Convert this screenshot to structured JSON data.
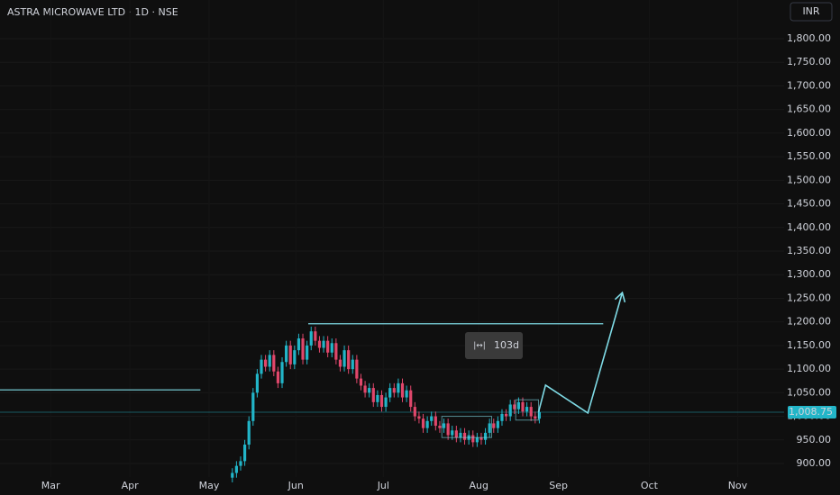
{
  "chart_data": {
    "type": "candlestick",
    "title": "ASTRA MICROWAVE LTD · 1D · NSE",
    "currency": "INR",
    "up_color": "#22b5c8",
    "down_color": "#e0476b",
    "drawing_color": "#7fdbe6",
    "x": [
      56,
      57,
      58,
      59,
      60,
      61,
      62,
      63,
      64,
      65,
      66,
      67,
      68,
      69,
      70,
      71,
      72,
      73,
      74,
      75,
      76,
      77,
      78,
      79,
      80,
      81,
      82,
      83,
      84,
      85,
      86,
      87,
      88,
      89,
      90,
      91,
      92,
      93,
      94,
      95,
      96,
      97,
      98,
      99,
      100,
      101,
      102,
      103,
      104,
      105,
      106,
      107,
      108,
      109,
      110,
      111,
      112,
      113,
      114,
      115,
      116,
      117,
      118,
      119,
      120,
      121,
      122,
      123,
      124,
      125,
      126,
      127,
      128,
      129,
      130
    ],
    "open": [
      870,
      880,
      895,
      905,
      940,
      990,
      1050,
      1090,
      1120,
      1105,
      1130,
      1095,
      1070,
      1115,
      1150,
      1110,
      1140,
      1165,
      1120,
      1150,
      1180,
      1160,
      1145,
      1160,
      1135,
      1155,
      1120,
      1105,
      1140,
      1100,
      1120,
      1080,
      1065,
      1050,
      1060,
      1030,
      1045,
      1020,
      1040,
      1060,
      1050,
      1070,
      1040,
      1055,
      1020,
      1000,
      995,
      975,
      990,
      1000,
      980,
      975,
      985,
      960,
      970,
      955,
      965,
      950,
      960,
      945,
      955,
      950,
      965,
      985,
      975,
      990,
      1005,
      1000,
      1025,
      1015,
      1030,
      1010,
      1020,
      1000,
      995
    ],
    "high": [
      890,
      905,
      915,
      950,
      1000,
      1060,
      1100,
      1130,
      1130,
      1140,
      1140,
      1105,
      1125,
      1160,
      1160,
      1150,
      1175,
      1175,
      1160,
      1190,
      1190,
      1170,
      1170,
      1170,
      1165,
      1165,
      1130,
      1150,
      1150,
      1130,
      1130,
      1090,
      1075,
      1070,
      1070,
      1055,
      1055,
      1050,
      1070,
      1070,
      1080,
      1080,
      1065,
      1065,
      1030,
      1010,
      1005,
      1000,
      1010,
      1010,
      990,
      995,
      995,
      980,
      980,
      975,
      975,
      970,
      970,
      965,
      965,
      975,
      995,
      995,
      1000,
      1015,
      1015,
      1035,
      1035,
      1040,
      1040,
      1030,
      1030,
      1010,
      1018
    ],
    "low": [
      860,
      870,
      885,
      895,
      930,
      980,
      1040,
      1080,
      1095,
      1095,
      1085,
      1060,
      1060,
      1105,
      1100,
      1100,
      1130,
      1110,
      1110,
      1140,
      1150,
      1135,
      1135,
      1125,
      1125,
      1110,
      1095,
      1095,
      1090,
      1090,
      1070,
      1055,
      1040,
      1040,
      1020,
      1020,
      1010,
      1010,
      1030,
      1040,
      1040,
      1030,
      1030,
      1010,
      990,
      985,
      965,
      965,
      980,
      970,
      965,
      965,
      950,
      950,
      945,
      945,
      940,
      940,
      935,
      935,
      940,
      940,
      955,
      965,
      965,
      980,
      990,
      990,
      1005,
      1005,
      1000,
      1000,
      990,
      985,
      985
    ],
    "close": [
      880,
      895,
      905,
      940,
      990,
      1050,
      1090,
      1120,
      1105,
      1130,
      1095,
      1070,
      1115,
      1150,
      1110,
      1140,
      1165,
      1120,
      1150,
      1180,
      1160,
      1145,
      1160,
      1135,
      1155,
      1120,
      1105,
      1140,
      1100,
      1120,
      1080,
      1065,
      1050,
      1060,
      1030,
      1045,
      1020,
      1040,
      1060,
      1050,
      1070,
      1040,
      1055,
      1020,
      1000,
      995,
      975,
      990,
      1000,
      980,
      975,
      985,
      960,
      970,
      955,
      965,
      950,
      960,
      945,
      955,
      950,
      965,
      985,
      975,
      990,
      1005,
      1000,
      1025,
      1015,
      1030,
      1010,
      1020,
      1000,
      995,
      1008.75
    ],
    "last_price": 1008.75,
    "last_price_label": "1,008.75",
    "xlim": [
      0,
      189
    ],
    "xticks": [
      {
        "value": 12.2,
        "label": "Mar"
      },
      {
        "value": 31.3,
        "label": "Apr"
      },
      {
        "value": 50.4,
        "label": "May"
      },
      {
        "value": 71.3,
        "label": "Jun"
      },
      {
        "value": 92.4,
        "label": "Jul"
      },
      {
        "value": 115.4,
        "label": "Aug"
      },
      {
        "value": 134.6,
        "label": "Sep"
      },
      {
        "value": 156.5,
        "label": "Oct"
      },
      {
        "value": 177.8,
        "label": "Nov"
      }
    ],
    "ylim": [
      871.4,
      1882
    ],
    "yticks": [
      {
        "value": 900,
        "label": "900.00"
      },
      {
        "value": 950,
        "label": "950.00"
      },
      {
        "value": 1000,
        "label": "1,000.00"
      },
      {
        "value": 1050,
        "label": "1,050.00"
      },
      {
        "value": 1100,
        "label": "1,100.00"
      },
      {
        "value": 1150,
        "label": "1,150.00"
      },
      {
        "value": 1200,
        "label": "1,200.00"
      },
      {
        "value": 1250,
        "label": "1,250.00"
      },
      {
        "value": 1300,
        "label": "1,300.00"
      },
      {
        "value": 1350,
        "label": "1,350.00"
      },
      {
        "value": 1400,
        "label": "1,400.00"
      },
      {
        "value": 1450,
        "label": "1,450.00"
      },
      {
        "value": 1500,
        "label": "1,500.00"
      },
      {
        "value": 1550,
        "label": "1,550.00"
      },
      {
        "value": 1600,
        "label": "1,600.00"
      },
      {
        "value": 1650,
        "label": "1,650.00"
      },
      {
        "value": 1700,
        "label": "1,700.00"
      },
      {
        "value": 1750,
        "label": "1,750.00"
      },
      {
        "value": 1800,
        "label": "1,800.00"
      }
    ],
    "hlines": [
      {
        "x": [
          0,
          48.3
        ],
        "y": 1056
      },
      {
        "x": [
          74.3,
          145.4
        ],
        "y": 1196
      }
    ],
    "boxes": [
      {
        "x": [
          106.5,
          118.5
        ],
        "y": [
          955,
          1000
        ]
      },
      {
        "x": [
          124.3,
          129.8
        ],
        "y": [
          992,
          1035
        ]
      }
    ],
    "projection": {
      "x": [
        129.8,
        131.5,
        141.7,
        150
      ],
      "values": [
        1008.75,
        1066,
        1007,
        1262
      ]
    },
    "measure_label": "103d"
  }
}
